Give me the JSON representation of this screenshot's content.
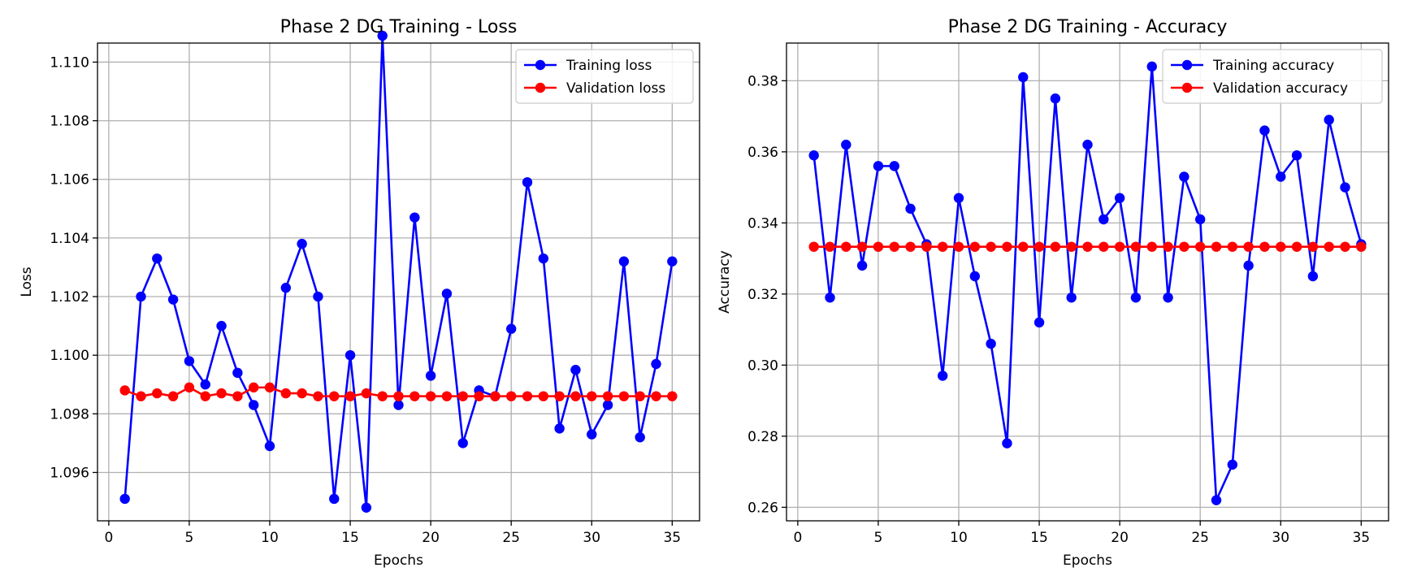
{
  "chart_data": [
    {
      "type": "line",
      "title": "Phase 2 DG Training - Loss",
      "xlabel": "Epochs",
      "ylabel": "Loss",
      "xlim": [
        -0.7,
        36.7
      ],
      "ylim": [
        1.09435,
        1.11065
      ],
      "xticks": [
        0,
        5,
        10,
        15,
        20,
        25,
        30,
        35
      ],
      "yticks": [
        1.096,
        1.098,
        1.1,
        1.102,
        1.104,
        1.106,
        1.108,
        1.11
      ],
      "ytick_labels": [
        "1.096",
        "1.098",
        "1.100",
        "1.102",
        "1.104",
        "1.106",
        "1.108",
        "1.110"
      ],
      "grid": true,
      "legend": "top-right",
      "x": [
        1,
        2,
        3,
        4,
        5,
        6,
        7,
        8,
        9,
        10,
        11,
        12,
        13,
        14,
        15,
        16,
        17,
        18,
        19,
        20,
        21,
        22,
        23,
        24,
        25,
        26,
        27,
        28,
        29,
        30,
        31,
        32,
        33,
        34,
        35
      ],
      "series": [
        {
          "name": "Training loss",
          "color": "#0000ff",
          "values": [
            1.0951,
            1.102,
            1.1033,
            1.1019,
            1.0998,
            1.099,
            1.101,
            1.0994,
            1.0983,
            1.0969,
            1.1023,
            1.1038,
            1.102,
            1.0951,
            1.1,
            1.0948,
            1.1109,
            1.0983,
            1.1047,
            1.0993,
            1.1021,
            1.097,
            1.0988,
            1.0986,
            1.1009,
            1.1059,
            1.1033,
            1.0975,
            1.0995,
            1.0973,
            1.0983,
            1.1032,
            1.0972,
            1.0997,
            1.1032
          ]
        },
        {
          "name": "Validation loss",
          "color": "#ff0000",
          "values": [
            1.0988,
            1.0986,
            1.0987,
            1.0986,
            1.0989,
            1.0986,
            1.0987,
            1.0986,
            1.0989,
            1.0989,
            1.0987,
            1.0987,
            1.0986,
            1.0986,
            1.0986,
            1.0987,
            1.0986,
            1.0986,
            1.0986,
            1.0986,
            1.0986,
            1.0986,
            1.0986,
            1.0986,
            1.0986,
            1.0986,
            1.0986,
            1.0986,
            1.0986,
            1.0986,
            1.0986,
            1.0986,
            1.0986,
            1.0986,
            1.0986
          ]
        }
      ]
    },
    {
      "type": "line",
      "title": "Phase 2 DG Training - Accuracy",
      "xlabel": "Epochs",
      "ylabel": "Accuracy",
      "xlim": [
        -0.7,
        36.7
      ],
      "ylim": [
        0.2562,
        0.3906
      ],
      "xticks": [
        0,
        5,
        10,
        15,
        20,
        25,
        30,
        35
      ],
      "yticks": [
        0.26,
        0.28,
        0.3,
        0.32,
        0.34,
        0.36,
        0.38
      ],
      "ytick_labels": [
        "0.26",
        "0.28",
        "0.30",
        "0.32",
        "0.34",
        "0.36",
        "0.38"
      ],
      "grid": true,
      "legend": "top-right",
      "x": [
        1,
        2,
        3,
        4,
        5,
        6,
        7,
        8,
        9,
        10,
        11,
        12,
        13,
        14,
        15,
        16,
        17,
        18,
        19,
        20,
        21,
        22,
        23,
        24,
        25,
        26,
        27,
        28,
        29,
        30,
        31,
        32,
        33,
        34,
        35
      ],
      "series": [
        {
          "name": "Training accuracy",
          "color": "#0000ff",
          "values": [
            0.359,
            0.319,
            0.362,
            0.328,
            0.356,
            0.356,
            0.344,
            0.334,
            0.297,
            0.347,
            0.325,
            0.306,
            0.278,
            0.381,
            0.312,
            0.375,
            0.319,
            0.362,
            0.341,
            0.347,
            0.319,
            0.384,
            0.319,
            0.353,
            0.341,
            0.262,
            0.272,
            0.328,
            0.366,
            0.353,
            0.359,
            0.325,
            0.369,
            0.35,
            0.334
          ]
        },
        {
          "name": "Validation accuracy",
          "color": "#ff0000",
          "values": [
            0.3333,
            0.3333,
            0.3333,
            0.3333,
            0.3333,
            0.3333,
            0.3333,
            0.3333,
            0.3333,
            0.3333,
            0.3333,
            0.3333,
            0.3333,
            0.3333,
            0.3333,
            0.3333,
            0.3333,
            0.3333,
            0.3333,
            0.3333,
            0.3333,
            0.3333,
            0.3333,
            0.3333,
            0.3333,
            0.3333,
            0.3333,
            0.3333,
            0.3333,
            0.3333,
            0.3333,
            0.3333,
            0.3333,
            0.3333,
            0.3333
          ]
        }
      ]
    }
  ]
}
